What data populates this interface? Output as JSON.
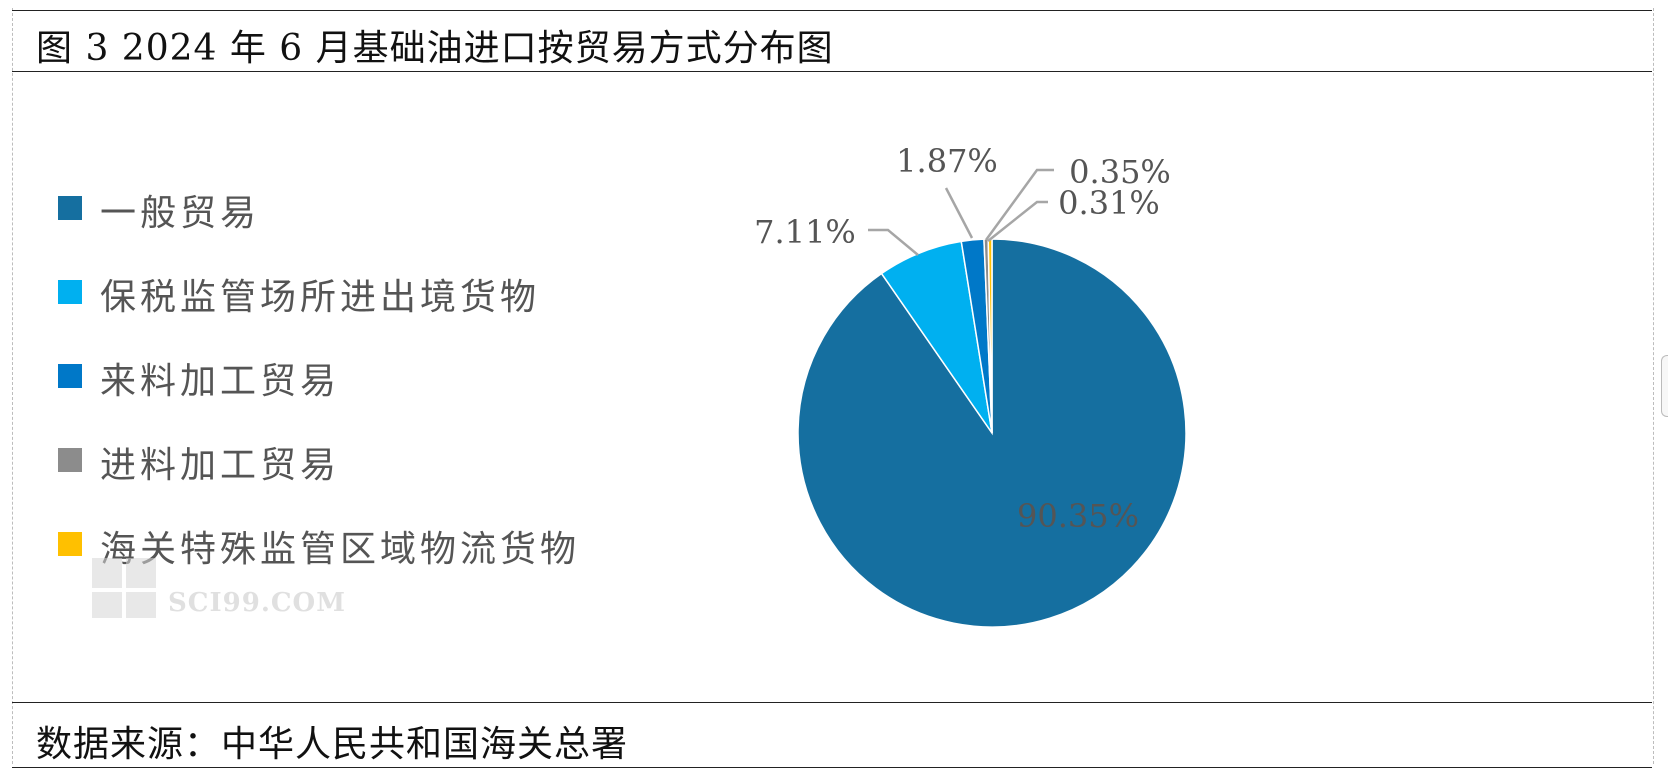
{
  "header": {
    "title": "图 3 2024 年 6 月基础油进口按贸易方式分布图"
  },
  "footer": {
    "source": "数据来源：中华人民共和国海关总署"
  },
  "watermark": {
    "text": "SCI99.COM"
  },
  "chart_data": {
    "type": "pie",
    "categories": [
      "一般贸易",
      "保税监管场所进出境货物",
      "来料加工贸易",
      "进料加工贸易",
      "海关特殊监管区域物流货物"
    ],
    "values": [
      90.35,
      7.11,
      1.87,
      0.35,
      0.31
    ],
    "data_labels": [
      "90.35%",
      "7.11%",
      "1.87%",
      "0.35%",
      "0.31%"
    ],
    "colors": [
      "#156fa0",
      "#00b0f0",
      "#0078c8",
      "#8c8c8c",
      "#ffc000"
    ],
    "legend_position": "left",
    "start_angle_deg": 0,
    "direction": "clockwise"
  }
}
